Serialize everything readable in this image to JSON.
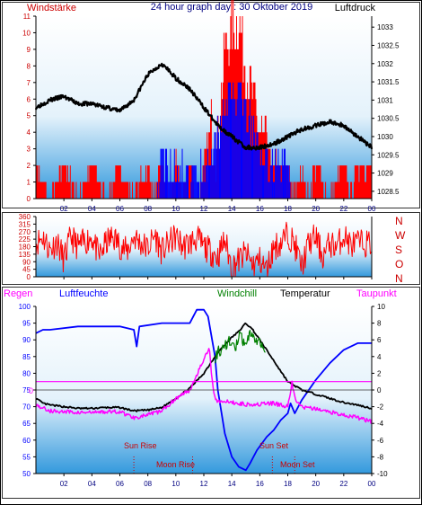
{
  "header": {
    "left_label": "Windstärke",
    "title": "24 hour graph day : 30 Oktober 2019",
    "right_label": "Luftdruck"
  },
  "colors": {
    "wind": "#ff0000",
    "gust": "#0000ff",
    "pressure": "#000000",
    "direction": "#ff0000",
    "humidity": "#0000ff",
    "temperature": "#000000",
    "windchill": "#008000",
    "dewpoint": "#ff00ff",
    "rain": "#ff00ff",
    "astro": "#cc0000",
    "panel_top": "#ffffff",
    "panel_bottom": "#3399dd"
  },
  "x_ticks": [
    "02",
    "04",
    "06",
    "08",
    "10",
    "12",
    "14",
    "16",
    "18",
    "20",
    "22",
    "00"
  ],
  "legend": {
    "regen": "Regen",
    "luftfeuchte": "Luftfeuchte",
    "windchill": "Windchill",
    "temperatur": "Temperatur",
    "taupunkt": "Taupunkt"
  },
  "astro": {
    "sun_rise": "Sun Rise",
    "moon_rise": "Moon Rise",
    "sun_set": "Sun Set",
    "moon_set": "Moon Set"
  },
  "compass": [
    "N",
    "W",
    "S",
    "O",
    "N"
  ],
  "rain_label": "0",
  "chart_data": [
    {
      "type": "bar",
      "name": "wind_and_pressure",
      "x_unit": "hour of day",
      "xlim": [
        0,
        24
      ],
      "y_left": {
        "label": "Windstärke",
        "ticks": [
          "0",
          "1",
          "2",
          "3",
          "4",
          "5",
          "6",
          "7",
          "8",
          "9",
          "10",
          "11"
        ],
        "ylim": [
          0,
          11
        ]
      },
      "y_right": {
        "label": "Luftdruck",
        "ticks": [
          "1028.5",
          "1029",
          "1029.5",
          "1030",
          "1030.5",
          "1031",
          "1031.5",
          "1032",
          "1032.5",
          "1033"
        ],
        "ylim": [
          1028.3,
          1033.3
        ]
      },
      "pressure": [
        [
          0,
          1030.8
        ],
        [
          1,
          1031.0
        ],
        [
          2,
          1031.1
        ],
        [
          3,
          1030.9
        ],
        [
          4,
          1030.9
        ],
        [
          5,
          1030.8
        ],
        [
          6,
          1030.7
        ],
        [
          7,
          1031.0
        ],
        [
          8,
          1031.7
        ],
        [
          9,
          1032.0
        ],
        [
          10,
          1031.6
        ],
        [
          11,
          1031.3
        ],
        [
          12,
          1030.8
        ],
        [
          13,
          1030.3
        ],
        [
          14,
          1030.0
        ],
        [
          15,
          1029.7
        ],
        [
          16,
          1029.7
        ],
        [
          17,
          1029.8
        ],
        [
          18,
          1030.0
        ],
        [
          19,
          1030.2
        ],
        [
          20,
          1030.3
        ],
        [
          21,
          1030.4
        ],
        [
          22,
          1030.3
        ],
        [
          23,
          1030.0
        ],
        [
          24,
          1029.7
        ]
      ],
      "wind": [
        [
          0,
          2
        ],
        [
          1,
          0
        ],
        [
          2,
          2
        ],
        [
          3,
          0
        ],
        [
          4,
          2
        ],
        [
          5,
          0
        ],
        [
          6,
          2
        ],
        [
          7,
          0
        ],
        [
          8,
          2
        ],
        [
          8.5,
          0
        ],
        [
          9,
          2
        ],
        [
          9.5,
          0
        ],
        [
          10,
          2
        ],
        [
          10.5,
          0
        ],
        [
          11,
          2
        ],
        [
          11.5,
          0
        ],
        [
          12,
          2
        ],
        [
          12.5,
          4
        ],
        [
          13,
          3
        ],
        [
          13.5,
          9
        ],
        [
          14,
          10
        ],
        [
          14.5,
          11
        ],
        [
          15,
          8
        ],
        [
          15.5,
          6
        ],
        [
          16,
          4
        ],
        [
          16.5,
          3
        ],
        [
          17,
          2
        ],
        [
          17.5,
          2
        ],
        [
          18,
          2
        ],
        [
          18.5,
          0
        ],
        [
          19,
          2
        ],
        [
          19.5,
          0
        ],
        [
          20,
          2
        ],
        [
          21,
          0
        ],
        [
          22,
          2
        ],
        [
          22.5,
          0
        ],
        [
          23,
          2
        ],
        [
          24,
          2
        ]
      ],
      "gust": [
        [
          8.5,
          0
        ],
        [
          9,
          2
        ],
        [
          10,
          2
        ],
        [
          11,
          1
        ],
        [
          12,
          2
        ],
        [
          12.5,
          3
        ],
        [
          13,
          4
        ],
        [
          13.5,
          6
        ],
        [
          14,
          6
        ],
        [
          14.5,
          6
        ],
        [
          15,
          5
        ],
        [
          15.5,
          4
        ],
        [
          16,
          3
        ],
        [
          16.5,
          2
        ],
        [
          17,
          2
        ],
        [
          18,
          2
        ],
        [
          18.5,
          0
        ]
      ]
    },
    {
      "type": "line",
      "name": "wind_direction",
      "xlim": [
        0,
        24
      ],
      "y": {
        "ticks": [
          "0",
          "45",
          "90",
          "135",
          "180",
          "225",
          "270",
          "315",
          "360"
        ],
        "ylim": [
          0,
          360
        ]
      },
      "values": [
        [
          0,
          200
        ],
        [
          0.5,
          240
        ],
        [
          1,
          160
        ],
        [
          1.5,
          210
        ],
        [
          2,
          100
        ],
        [
          2.5,
          240
        ],
        [
          3,
          180
        ],
        [
          3.5,
          210
        ],
        [
          4,
          240
        ],
        [
          4.5,
          120
        ],
        [
          5,
          200
        ],
        [
          5.5,
          240
        ],
        [
          6,
          190
        ],
        [
          6.5,
          150
        ],
        [
          7,
          240
        ],
        [
          7.5,
          200
        ],
        [
          8,
          170
        ],
        [
          8.5,
          250
        ],
        [
          9,
          150
        ],
        [
          9.5,
          200
        ],
        [
          10,
          240
        ],
        [
          10.5,
          180
        ],
        [
          11,
          200
        ],
        [
          11.5,
          230
        ],
        [
          12,
          180
        ],
        [
          12.5,
          150
        ],
        [
          13,
          120
        ],
        [
          13.5,
          220
        ],
        [
          14,
          60
        ],
        [
          14.5,
          100
        ],
        [
          15,
          140
        ],
        [
          15.5,
          70
        ],
        [
          16,
          100
        ],
        [
          16.5,
          40
        ],
        [
          17,
          180
        ],
        [
          17.5,
          200
        ],
        [
          18,
          260
        ],
        [
          18.5,
          190
        ],
        [
          19,
          60
        ],
        [
          19.5,
          200
        ],
        [
          20,
          240
        ],
        [
          20.5,
          120
        ],
        [
          21,
          200
        ],
        [
          21.5,
          180
        ],
        [
          22,
          250
        ],
        [
          22.5,
          190
        ],
        [
          23,
          200
        ],
        [
          24,
          200
        ]
      ]
    },
    {
      "type": "line",
      "name": "temperature_humidity",
      "xlim": [
        0,
        24
      ],
      "y_left": {
        "ticks": [
          "50",
          "55",
          "60",
          "65",
          "70",
          "75",
          "80",
          "85",
          "90",
          "95",
          "100"
        ],
        "ylim": [
          50,
          100
        ]
      },
      "y_right": {
        "ticks": [
          "-10",
          "-8",
          "-6",
          "-4",
          "-2",
          "0",
          "2",
          "4",
          "6",
          "8",
          "10"
        ],
        "ylim": [
          -10,
          10
        ]
      },
      "series": [
        {
          "name": "Luftfeuchte",
          "axis": "left",
          "values": [
            [
              0,
              92
            ],
            [
              0.5,
              93
            ],
            [
              1,
              93
            ],
            [
              3,
              94
            ],
            [
              5,
              94
            ],
            [
              6,
              94
            ],
            [
              7,
              93
            ],
            [
              7.2,
              88
            ],
            [
              7.4,
              94
            ],
            [
              9,
              95
            ],
            [
              11,
              95
            ],
            [
              11.5,
              99
            ],
            [
              12,
              99
            ],
            [
              12.3,
              97
            ],
            [
              12.8,
              85
            ],
            [
              13,
              75
            ],
            [
              13.5,
              62
            ],
            [
              14,
              55
            ],
            [
              14.5,
              52
            ],
            [
              15,
              51
            ],
            [
              15.3,
              53
            ],
            [
              15.8,
              57
            ],
            [
              16.5,
              61
            ],
            [
              17,
              63
            ],
            [
              17.5,
              66
            ],
            [
              18,
              68
            ],
            [
              18.2,
              71
            ],
            [
              18.5,
              68
            ],
            [
              19,
              72
            ],
            [
              20,
              78
            ],
            [
              21,
              83
            ],
            [
              22,
              87
            ],
            [
              23,
              89
            ],
            [
              24,
              89
            ]
          ]
        },
        {
          "name": "Temperatur",
          "axis": "right",
          "values": [
            [
              0,
              -1.0
            ],
            [
              0.5,
              -1.6
            ],
            [
              1,
              -1.8
            ],
            [
              2,
              -2.0
            ],
            [
              3,
              -2.2
            ],
            [
              4,
              -2.2
            ],
            [
              5,
              -2.1
            ],
            [
              6,
              -2.1
            ],
            [
              7,
              -2.5
            ],
            [
              8,
              -2.4
            ],
            [
              9,
              -2.1
            ],
            [
              10,
              -1.0
            ],
            [
              11,
              0.2
            ],
            [
              12,
              2.0
            ],
            [
              13,
              4.5
            ],
            [
              14,
              6.3
            ],
            [
              14.5,
              7.0
            ],
            [
              15,
              8.0
            ],
            [
              15.5,
              7.2
            ],
            [
              16,
              6.0
            ],
            [
              17,
              3.5
            ],
            [
              18,
              1.0
            ],
            [
              19,
              0
            ],
            [
              20,
              -0.5
            ],
            [
              21,
              -1.0
            ],
            [
              22,
              -1.5
            ],
            [
              23,
              -1.8
            ],
            [
              24,
              -2.2
            ]
          ]
        },
        {
          "name": "Windchill",
          "axis": "right",
          "values": [
            [
              12.8,
              4.0
            ],
            [
              13.3,
              5.0
            ],
            [
              13.8,
              6.0
            ],
            [
              14.2,
              4.8
            ],
            [
              14.6,
              6.5
            ],
            [
              15,
              5.0
            ],
            [
              15.4,
              7.0
            ],
            [
              15.8,
              6.0
            ],
            [
              16,
              5.5
            ],
            [
              16.4,
              4.5
            ]
          ]
        },
        {
          "name": "Taupunkt",
          "axis": "right",
          "values": [
            [
              0,
              -1.8
            ],
            [
              1,
              -2.5
            ],
            [
              2,
              -2.6
            ],
            [
              3,
              -2.7
            ],
            [
              4,
              -2.7
            ],
            [
              5,
              -2.6
            ],
            [
              6,
              -2.6
            ],
            [
              7,
              -3.3
            ],
            [
              8,
              -3.0
            ],
            [
              9,
              -2.5
            ],
            [
              10,
              -1.0
            ],
            [
              11,
              0
            ],
            [
              11.8,
              3.0
            ],
            [
              12.4,
              5.0
            ],
            [
              12.6,
              1.0
            ],
            [
              12.8,
              -1.0
            ],
            [
              13,
              -1.3
            ],
            [
              14,
              -1.5
            ],
            [
              15,
              -1.7
            ],
            [
              16,
              -1.7
            ],
            [
              17,
              -1.6
            ],
            [
              17.5,
              -1.8
            ],
            [
              18,
              -2.0
            ],
            [
              18.3,
              0.8
            ],
            [
              18.6,
              -1.5
            ],
            [
              19,
              -2.0
            ],
            [
              20,
              -2.3
            ],
            [
              21,
              -2.6
            ],
            [
              22,
              -3.0
            ],
            [
              23,
              -3.3
            ],
            [
              24,
              -3.8
            ]
          ]
        },
        {
          "name": "Regen",
          "axis": "right",
          "values": [
            [
              0,
              1
            ],
            [
              24,
              1
            ]
          ]
        }
      ],
      "events": [
        [
          7.0,
          "Sun Rise"
        ],
        [
          16.9,
          "Sun Set"
        ],
        [
          11.2,
          "Moon Rise"
        ],
        [
          18.5,
          "Moon Set"
        ]
      ]
    }
  ]
}
